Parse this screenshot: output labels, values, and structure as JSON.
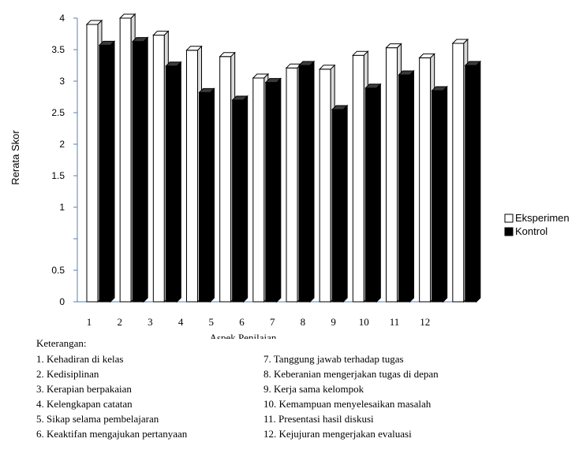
{
  "chart_data": {
    "type": "bar",
    "ylabel": "Rerata Skor",
    "xlabel": "Aspek Penilaian",
    "y_ticks": [
      "0",
      "0.5",
      "",
      "1",
      "1.5",
      "2",
      "2.5",
      "3",
      "3.5",
      "4"
    ],
    "x_tick_labels": [
      "1",
      "2",
      "3",
      "4",
      "5",
      "6",
      "7",
      "8",
      "9",
      "10",
      "11",
      "12"
    ],
    "legend_position": "right",
    "series": [
      {
        "name": "Eksperimen",
        "color": "#ffffff",
        "values": [
          3.9,
          4.02,
          3.73,
          3.49,
          3.39,
          3.05,
          3.21,
          3.19,
          3.41,
          3.53,
          3.37,
          3.6
        ]
      },
      {
        "name": "Kontrol",
        "color": "#000000",
        "values": [
          3.57,
          3.63,
          3.24,
          2.82,
          2.7,
          2.98,
          3.25,
          2.55,
          2.89,
          3.1,
          2.85,
          3.25
        ]
      }
    ]
  },
  "notes": {
    "heading": "Keterangan:",
    "items": [
      "1. Kehadiran di kelas",
      "7. Tanggung jawab terhadap tugas",
      "2. Kedisiplinan",
      "8. Keberanian mengerjakan tugas di depan",
      "3. Kerapian berpakaian",
      "9. Kerja sama kelompok",
      "4. Kelengkapan catatan",
      "10. Kemampuan menyelesaikan masalah",
      "5. Sikap selama pembelajaran",
      "11. Presentasi hasil diskusi",
      "6. Keaktifan mengajukan pertanyaan",
      "12. Kejujuran mengerjakan evaluasi"
    ]
  }
}
